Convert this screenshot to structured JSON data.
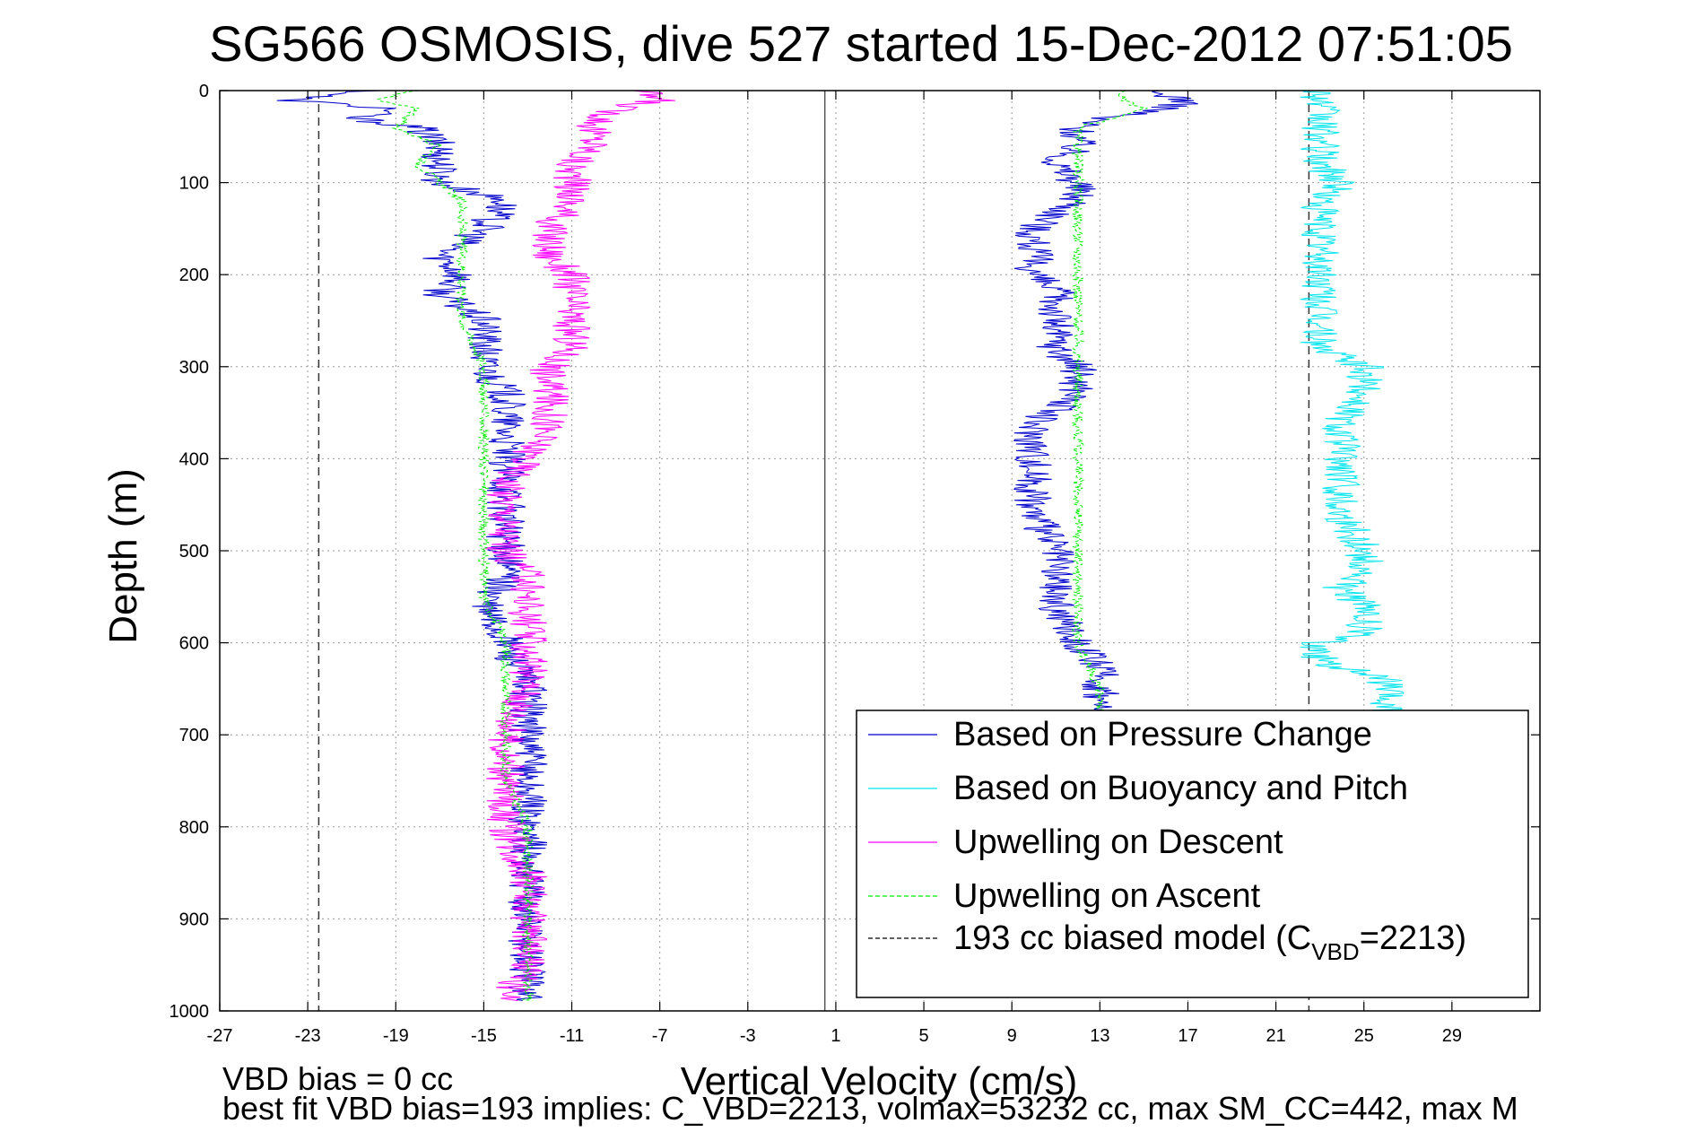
{
  "chart_data": {
    "type": "line",
    "title": "SG566 OSMOSIS, dive 527 started 15-Dec-2012 07:51:05",
    "xlabel": "Vertical Velocity (cm/s)",
    "ylabel": "Depth (m)",
    "xlim": [
      -27,
      33
    ],
    "ylim": [
      0,
      1000
    ],
    "y_reversed": true,
    "grid": true,
    "legend_position": "lower-right",
    "xticks": [
      -27,
      -23,
      -19,
      -15,
      -11,
      -7,
      -3,
      1,
      5,
      9,
      13,
      17,
      21,
      25,
      29
    ],
    "xtick_labels": [
      "-27",
      "-23",
      "-19",
      "-15",
      "-11",
      "-7",
      "-3",
      "1",
      "5",
      "9",
      "13",
      "17",
      "21",
      "25",
      "29"
    ],
    "yticks": [
      0,
      100,
      200,
      300,
      400,
      500,
      600,
      700,
      800,
      900,
      1000
    ],
    "ytick_labels": [
      "0",
      "100",
      "200",
      "300",
      "400",
      "500",
      "600",
      "700",
      "800",
      "900",
      "1000"
    ],
    "zero_line_x": 0.5,
    "model_lines_x": [
      -22.5,
      22.5
    ],
    "series": [
      {
        "name": "Based on Pressure Change",
        "color": "#0000cc",
        "style": "solid",
        "profiles": [
          {
            "depth": [
              0,
              10,
              20,
              30,
              40,
              60,
              80,
              100,
              120,
              150,
              180,
              200,
              220,
              250,
              280,
              300,
              330,
              360,
              400,
              430,
              460,
              500,
              530,
              560,
              600,
              650,
              700,
              750,
              800,
              850,
              900,
              950,
              990
            ],
            "velocity": [
              -20,
              -24,
              -19,
              -21,
              -18,
              -17,
              -17,
              -17,
              -14,
              -15,
              -17,
              -16,
              -17,
              -15,
              -15,
              -15,
              -14,
              -14,
              -14,
              -14,
              -14,
              -14,
              -14,
              -15,
              -14,
              -13,
              -13,
              -13,
              -13,
              -13,
              -13,
              -13,
              -13
            ]
          },
          {
            "depth": [
              0,
              10,
              20,
              30,
              40,
              60,
              80,
              100,
              120,
              150,
              180,
              200,
              220,
              250,
              280,
              300,
              330,
              360,
              400,
              430,
              460,
              500,
              530,
              560,
              600,
              630,
              660,
              680
            ],
            "velocity": [
              15,
              17,
              16,
              13,
              12,
              12,
              11,
              12,
              12,
              10,
              10,
              10,
              11,
              11,
              11,
              12,
              12,
              10,
              10,
              10,
              10,
              11,
              11,
              11,
              12,
              13,
              13,
              13
            ]
          }
        ]
      },
      {
        "name": "Based on Buoyancy and Pitch",
        "color": "#00e5ee",
        "style": "solid",
        "profiles": [
          {
            "depth": [
              0,
              20,
              40,
              60,
              80,
              100,
              120,
              150,
              180,
              200,
              230,
              260,
              280,
              300,
              330,
              360,
              400,
              430,
              460,
              500,
              520,
              540,
              560,
              590,
              600,
              620,
              640,
              660,
              680
            ],
            "velocity": [
              23,
              23,
              23,
              23,
              23,
              24,
              23,
              23,
              23,
              23,
              23,
              23,
              23,
              25,
              25,
              24,
              24,
              24,
              24,
              25,
              25,
              24,
              25,
              25,
              23,
              23,
              26,
              26,
              26
            ]
          }
        ]
      },
      {
        "name": "Upwelling on Descent",
        "color": "#ff00ff",
        "style": "solid",
        "profiles": [
          {
            "depth": [
              0,
              10,
              20,
              40,
              60,
              80,
              100,
              120,
              150,
              180,
              200,
              220,
              250,
              280,
              300,
              330,
              360,
              400,
              430,
              460,
              500,
              530,
              560,
              600,
              650,
              700,
              750,
              800,
              850,
              900,
              950,
              990
            ],
            "velocity": [
              -8,
              -7,
              -9,
              -10,
              -10,
              -11,
              -11,
              -11,
              -12,
              -12,
              -11,
              -11,
              -11,
              -11,
              -12,
              -12,
              -12,
              -13,
              -14,
              -14,
              -14,
              -13,
              -13,
              -13,
              -13,
              -14,
              -14,
              -14,
              -13,
              -13,
              -13,
              -14
            ]
          }
        ]
      },
      {
        "name": "Upwelling on Ascent",
        "color": "#00ee00",
        "style": "dashed",
        "profiles": [
          {
            "depth": [
              0,
              10,
              20,
              40,
              60,
              80,
              100,
              120,
              150,
              200,
              250,
              300,
              350,
              400,
              450,
              500,
              550,
              600,
              650,
              700,
              750,
              800,
              850,
              900,
              950,
              990
            ],
            "velocity": [
              -18,
              -20,
              -18,
              -19,
              -17,
              -18,
              -17,
              -16,
              -16,
              -16,
              -16,
              -15,
              -15,
              -15,
              -15,
              -15,
              -15,
              -14,
              -14,
              -14,
              -14,
              -13,
              -13,
              -13,
              -13,
              -13
            ]
          },
          {
            "depth": [
              0,
              10,
              20,
              40,
              60,
              80,
              100,
              150,
              200,
              250,
              300,
              350,
              400,
              450,
              500,
              550,
              600,
              650,
              680
            ],
            "velocity": [
              14,
              14,
              15,
              12,
              12,
              12,
              12,
              12,
              12,
              12,
              12,
              12,
              12,
              12,
              12,
              12,
              12,
              13,
              13
            ]
          }
        ]
      },
      {
        "name": "193 cc biased model",
        "legend_label": "193 cc biased model (C",
        "legend_sub": "VBD",
        "legend_tail": "=2213)",
        "color": "#000000",
        "style": "dashed"
      }
    ],
    "annotations": [
      "VBD bias = 0 cc",
      "best fit VBD bias=193 implies: C_VBD=2213, volmax=53232 cc, max SM_CC=442, max M"
    ]
  }
}
